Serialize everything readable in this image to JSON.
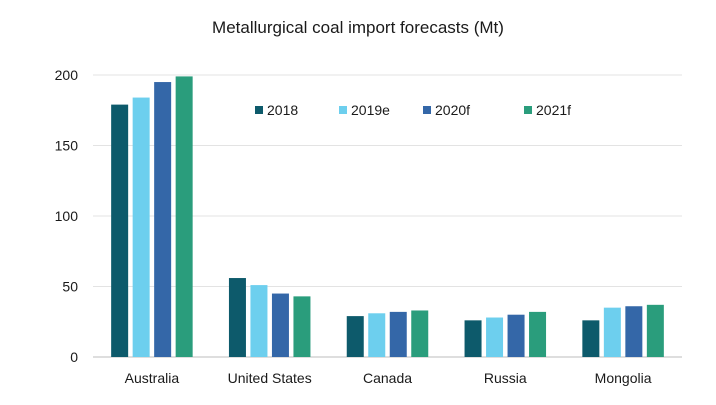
{
  "chart_data": {
    "type": "bar",
    "title": "Metallurgical coal import forecasts (Mt)",
    "xlabel": "",
    "ylabel": "",
    "categories": [
      "Australia",
      "United States",
      "Canada",
      "Russia",
      "Mongolia"
    ],
    "series": [
      {
        "name": "2018",
        "color": "#0d5a6b",
        "values": [
          179,
          56,
          29,
          26,
          26
        ]
      },
      {
        "name": "2019e",
        "color": "#6dcfee",
        "values": [
          184,
          51,
          31,
          28,
          35
        ]
      },
      {
        "name": "2020f",
        "color": "#3467a8",
        "values": [
          195,
          45,
          32,
          30,
          36
        ]
      },
      {
        "name": "2021f",
        "color": "#2a9d7c",
        "values": [
          199,
          43,
          33,
          32,
          37
        ]
      }
    ],
    "ylim": [
      0,
      200
    ],
    "yticks": [
      0,
      50,
      100,
      150,
      200
    ],
    "grid": true,
    "legend_position": "top-center"
  }
}
